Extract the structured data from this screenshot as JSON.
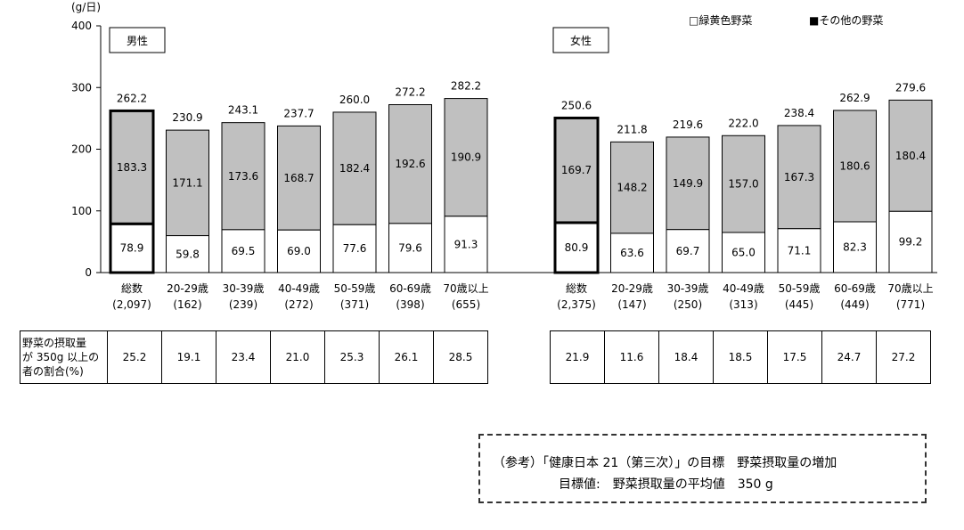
{
  "chart_data": {
    "type": "bar",
    "stacked": true,
    "ylabel": "(g/日)",
    "ylim": [
      0,
      400
    ],
    "yticks": [
      0,
      100,
      200,
      300,
      400
    ],
    "legend": {
      "position": "top-right",
      "items": [
        {
          "name": "□緑黄色野菜",
          "color": "#ffffff"
        },
        {
          "name": "■その他の野菜",
          "color": "#c0c0c0"
        }
      ]
    },
    "panels": [
      {
        "label": "男性",
        "categories": [
          "総数",
          "20-29歳",
          "30-39歳",
          "40-49歳",
          "50-59歳",
          "60-69歳",
          "70歳以上"
        ],
        "counts": [
          "(2,097)",
          "(162)",
          "(239)",
          "(272)",
          "(371)",
          "(398)",
          "(655)"
        ],
        "series": [
          {
            "name": "緑黄色野菜",
            "values": [
              78.9,
              59.8,
              69.5,
              69.0,
              77.6,
              79.6,
              91.3
            ]
          },
          {
            "name": "その他の野菜",
            "values": [
              183.3,
              171.1,
              173.6,
              168.7,
              182.4,
              192.6,
              190.9
            ]
          }
        ],
        "totals": [
          262.2,
          230.9,
          243.1,
          237.7,
          260.0,
          272.2,
          282.2
        ]
      },
      {
        "label": "女性",
        "categories": [
          "総数",
          "20-29歳",
          "30-39歳",
          "40-49歳",
          "50-59歳",
          "60-69歳",
          "70歳以上"
        ],
        "counts": [
          "(2,375)",
          "(147)",
          "(250)",
          "(313)",
          "(445)",
          "(449)",
          "(771)"
        ],
        "series": [
          {
            "name": "緑黄色野菜",
            "values": [
              80.9,
              63.6,
              69.7,
              65.0,
              71.1,
              82.3,
              99.2
            ]
          },
          {
            "name": "その他の野菜",
            "values": [
              169.7,
              148.2,
              149.9,
              157.0,
              167.3,
              180.6,
              180.4
            ]
          }
        ],
        "totals": [
          250.6,
          211.8,
          219.6,
          222.0,
          238.4,
          262.9,
          279.6
        ]
      }
    ]
  },
  "table": {
    "header_lines": [
      "野菜の摂取量",
      "が 350g 以上の",
      "者の割合(%)"
    ],
    "male": [
      "25.2",
      "19.1",
      "23.4",
      "21.0",
      "25.3",
      "26.1",
      "28.5"
    ],
    "female": [
      "21.9",
      "11.6",
      "18.4",
      "18.5",
      "17.5",
      "24.7",
      "27.2"
    ]
  },
  "note": {
    "line1": "（参考）「健康日本 21（第三次）」の目標　野菜摂取量の増加",
    "line2": "目標値:　野菜摂取量の平均値　350 g"
  }
}
